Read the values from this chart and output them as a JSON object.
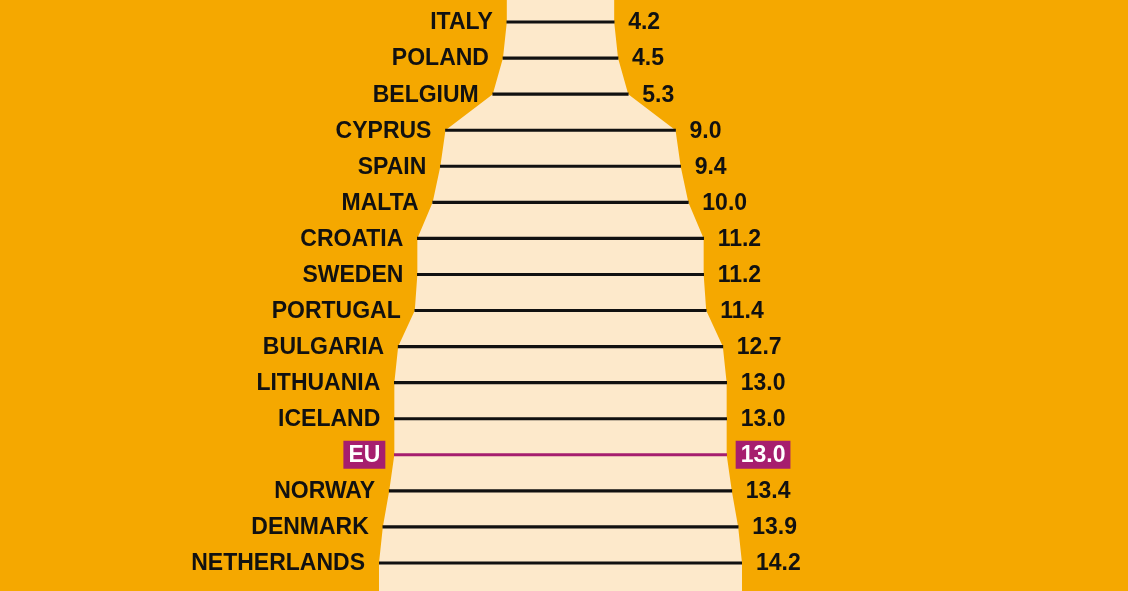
{
  "chart_data": {
    "type": "other",
    "legend": false,
    "categories": [
      "ITALY",
      "POLAND",
      "BELGIUM",
      "CYPRUS",
      "SPAIN",
      "MALTA",
      "CROATIA",
      "SWEDEN",
      "PORTUGAL",
      "BULGARIA",
      "LITHUANIA",
      "ICELAND",
      "EU",
      "NORWAY",
      "DENMARK",
      "NETHERLANDS"
    ],
    "values": [
      4.2,
      4.5,
      5.3,
      9.0,
      9.4,
      10.0,
      11.2,
      11.2,
      11.4,
      12.7,
      13.0,
      13.0,
      13.0,
      13.4,
      13.9,
      14.2
    ],
    "value_labels": [
      "4.2",
      "4.5",
      "5.3",
      "9.0",
      "9.4",
      "10.0",
      "11.2",
      "11.2",
      "11.4",
      "12.7",
      "13.0",
      "13.0",
      "13.0",
      "13.4",
      "13.9",
      "14.2"
    ],
    "colors": [
      "#111111",
      "#111111",
      "#111111",
      "#111111",
      "#111111",
      "#111111",
      "#111111",
      "#111111",
      "#111111",
      "#111111",
      "#111111",
      "#111111",
      "#a61e6e",
      "#111111",
      "#111111",
      "#111111"
    ]
  }
}
